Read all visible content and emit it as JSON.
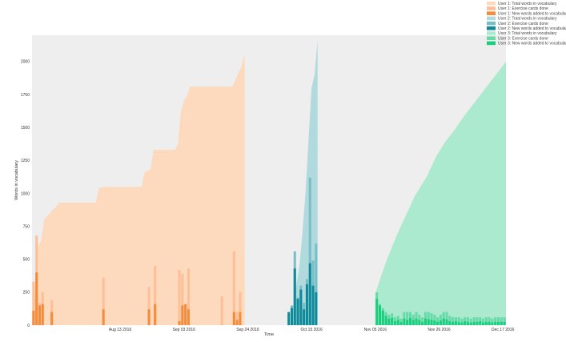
{
  "chart_data": {
    "type": "area",
    "xlabel": "Time",
    "ylabel": "Words in vocabulary",
    "grid": false,
    "legend_placement": "top-right",
    "background": "#eeeeee",
    "x_ticks": [
      {
        "date": "2016-08-13",
        "label": "Aug 13 2016"
      },
      {
        "date": "2016-09-03",
        "label": "Sep 03 2016"
      },
      {
        "date": "2016-09-24",
        "label": "Sep 24 2016"
      },
      {
        "date": "2016-10-15",
        "label": "Oct 15 2016"
      },
      {
        "date": "2016-11-05",
        "label": "Nov 05 2016"
      },
      {
        "date": "2016-11-26",
        "label": "Nov 26 2016"
      },
      {
        "date": "2016-12-17",
        "label": "Dec 17 2016"
      }
    ],
    "xlim": [
      "2016-07-15",
      "2016-12-18"
    ],
    "ylim": [
      0,
      2200
    ],
    "y_ticks": [
      0,
      250,
      500,
      750,
      1000,
      1250,
      1500,
      1750,
      2000
    ],
    "colors": {
      "user1_total": "#fdd9bd",
      "user1_cards": "#fcbf97",
      "user1_new": "#f58c3b",
      "user2_total": "#b0dadd",
      "user2_cards": "#78bec7",
      "user2_new": "#0e8a9a",
      "user3_total": "#acead0",
      "user3_cards": "#68d9a8",
      "user3_new": "#19cf7d"
    },
    "legend": [
      {
        "label": "User 1: Total words in vocabulary",
        "color_key": "user1_total"
      },
      {
        "label": "User 1: Exercise cards done",
        "color_key": "user1_cards"
      },
      {
        "label": "User 1: New words added to vocabulary",
        "color_key": "user1_new"
      },
      {
        "label": "User 2: Total words in vocabulary",
        "color_key": "user2_total"
      },
      {
        "label": "User 2: Exercise cards done",
        "color_key": "user2_cards"
      },
      {
        "label": "User 2: New words added to vocabulary",
        "color_key": "user2_new"
      },
      {
        "label": "User 3: Total words in vocabulary",
        "color_key": "user3_total"
      },
      {
        "label": "User 3: Exercise cards done",
        "color_key": "user3_cards"
      },
      {
        "label": "User 3: New words added to vocabulary",
        "color_key": "user3_new"
      }
    ],
    "series": [
      {
        "name": "User 1: Total words in vocabulary",
        "kind": "area",
        "color_key": "user1_total",
        "points": [
          [
            "2016-07-15",
            0
          ],
          [
            "2016-07-16",
            270
          ],
          [
            "2016-07-17",
            600
          ],
          [
            "2016-07-18",
            640
          ],
          [
            "2016-07-19",
            800
          ],
          [
            "2016-07-20",
            830
          ],
          [
            "2016-07-21",
            850
          ],
          [
            "2016-07-22",
            880
          ],
          [
            "2016-07-23",
            900
          ],
          [
            "2016-07-24",
            930
          ],
          [
            "2016-08-05",
            930
          ],
          [
            "2016-08-06",
            1040
          ],
          [
            "2016-08-08",
            1050
          ],
          [
            "2016-08-20",
            1050
          ],
          [
            "2016-08-21",
            1160
          ],
          [
            "2016-08-23",
            1180
          ],
          [
            "2016-08-24",
            1330
          ],
          [
            "2016-08-31",
            1330
          ],
          [
            "2016-09-01",
            1370
          ],
          [
            "2016-09-02",
            1620
          ],
          [
            "2016-09-03",
            1700
          ],
          [
            "2016-09-04",
            1740
          ],
          [
            "2016-09-05",
            1810
          ],
          [
            "2016-09-19",
            1810
          ],
          [
            "2016-09-21",
            1920
          ],
          [
            "2016-09-22",
            1960
          ],
          [
            "2016-09-23",
            2060
          ],
          [
            "2016-09-23",
            0
          ]
        ]
      },
      {
        "name": "User 2: Total words in vocabulary",
        "kind": "area",
        "color_key": "user2_total",
        "points": [
          [
            "2016-10-08",
            0
          ],
          [
            "2016-10-09",
            150
          ],
          [
            "2016-10-10",
            300
          ],
          [
            "2016-10-11",
            450
          ],
          [
            "2016-10-12",
            700
          ],
          [
            "2016-10-13",
            1000
          ],
          [
            "2016-10-14",
            1400
          ],
          [
            "2016-10-15",
            1800
          ],
          [
            "2016-10-16",
            1900
          ],
          [
            "2016-10-17",
            2160
          ],
          [
            "2016-10-17",
            0
          ]
        ]
      },
      {
        "name": "User 3: Total words in vocabulary",
        "kind": "area",
        "color_key": "user3_total",
        "points": [
          [
            "2016-11-05",
            0
          ],
          [
            "2016-11-05",
            240
          ],
          [
            "2016-11-07",
            380
          ],
          [
            "2016-11-09",
            510
          ],
          [
            "2016-11-12",
            680
          ],
          [
            "2016-11-15",
            830
          ],
          [
            "2016-11-18",
            980
          ],
          [
            "2016-11-22",
            1130
          ],
          [
            "2016-11-25",
            1280
          ],
          [
            "2016-11-28",
            1390
          ],
          [
            "2016-12-01",
            1480
          ],
          [
            "2016-12-04",
            1580
          ],
          [
            "2016-12-08",
            1700
          ],
          [
            "2016-12-11",
            1790
          ],
          [
            "2016-12-14",
            1880
          ],
          [
            "2016-12-18",
            2000
          ],
          [
            "2016-12-18",
            0
          ]
        ]
      },
      {
        "name": "User 1: Exercise cards done",
        "kind": "bar",
        "color_key": "user1_cards",
        "points": [
          [
            "2016-07-15",
            330
          ],
          [
            "2016-07-16",
            680
          ],
          [
            "2016-07-17",
            170
          ],
          [
            "2016-07-18",
            250
          ],
          [
            "2016-07-21",
            190
          ],
          [
            "2016-08-07",
            360
          ],
          [
            "2016-08-22",
            290
          ],
          [
            "2016-08-24",
            450
          ],
          [
            "2016-09-01",
            420
          ],
          [
            "2016-09-02",
            390
          ],
          [
            "2016-09-04",
            430
          ],
          [
            "2016-09-15",
            220
          ],
          [
            "2016-09-19",
            560
          ],
          [
            "2016-09-20",
            100
          ],
          [
            "2016-09-21",
            250
          ]
        ]
      },
      {
        "name": "User 1: New words added to vocabulary",
        "kind": "bar",
        "color_key": "user1_new",
        "points": [
          [
            "2016-07-15",
            110
          ],
          [
            "2016-07-16",
            400
          ],
          [
            "2016-07-17",
            150
          ],
          [
            "2016-07-18",
            160
          ],
          [
            "2016-07-21",
            100
          ],
          [
            "2016-08-07",
            120
          ],
          [
            "2016-08-22",
            120
          ],
          [
            "2016-08-24",
            160
          ],
          [
            "2016-09-01",
            30
          ],
          [
            "2016-09-02",
            150
          ],
          [
            "2016-09-03",
            160
          ],
          [
            "2016-09-04",
            120
          ],
          [
            "2016-09-19",
            100
          ],
          [
            "2016-09-20",
            40
          ],
          [
            "2016-09-21",
            100
          ]
        ]
      },
      {
        "name": "User 2: Exercise cards done",
        "kind": "bar",
        "color_key": "user2_cards",
        "points": [
          [
            "2016-10-08",
            150
          ],
          [
            "2016-10-09",
            560
          ],
          [
            "2016-10-10",
            210
          ],
          [
            "2016-10-11",
            300
          ],
          [
            "2016-10-12",
            170
          ],
          [
            "2016-10-13",
            350
          ],
          [
            "2016-10-14",
            1120
          ],
          [
            "2016-10-15",
            490
          ],
          [
            "2016-10-16",
            620
          ]
        ]
      },
      {
        "name": "User 2: New words added to vocabulary",
        "kind": "bar",
        "color_key": "user2_new",
        "points": [
          [
            "2016-10-07",
            100
          ],
          [
            "2016-10-08",
            130
          ],
          [
            "2016-10-09",
            430
          ],
          [
            "2016-10-10",
            200
          ],
          [
            "2016-10-11",
            270
          ],
          [
            "2016-10-12",
            120
          ],
          [
            "2016-10-13",
            310
          ],
          [
            "2016-10-14",
            470
          ],
          [
            "2016-10-15",
            300
          ],
          [
            "2016-10-16",
            250
          ]
        ]
      },
      {
        "name": "User 3: Exercise cards done",
        "kind": "bar",
        "color_key": "user3_cards",
        "points": [
          [
            "2016-11-05",
            250
          ],
          [
            "2016-11-06",
            160
          ],
          [
            "2016-11-07",
            130
          ],
          [
            "2016-11-08",
            100
          ],
          [
            "2016-11-09",
            80
          ],
          [
            "2016-11-10",
            90
          ],
          [
            "2016-11-11",
            60
          ],
          [
            "2016-11-12",
            70
          ],
          [
            "2016-11-13",
            50
          ],
          [
            "2016-11-14",
            100
          ],
          [
            "2016-11-15",
            100
          ],
          [
            "2016-11-16",
            100
          ],
          [
            "2016-11-17",
            80
          ],
          [
            "2016-11-18",
            100
          ],
          [
            "2016-11-19",
            80
          ],
          [
            "2016-11-20",
            60
          ],
          [
            "2016-11-21",
            100
          ],
          [
            "2016-11-22",
            100
          ],
          [
            "2016-11-23",
            90
          ],
          [
            "2016-11-24",
            80
          ],
          [
            "2016-11-25",
            60
          ],
          [
            "2016-11-26",
            80
          ],
          [
            "2016-11-27",
            100
          ],
          [
            "2016-11-28",
            100
          ],
          [
            "2016-11-29",
            70
          ],
          [
            "2016-11-30",
            60
          ],
          [
            "2016-12-01",
            60
          ],
          [
            "2016-12-02",
            60
          ],
          [
            "2016-12-03",
            50
          ],
          [
            "2016-12-04",
            60
          ],
          [
            "2016-12-05",
            60
          ],
          [
            "2016-12-06",
            50
          ],
          [
            "2016-12-07",
            60
          ],
          [
            "2016-12-08",
            60
          ],
          [
            "2016-12-09",
            60
          ],
          [
            "2016-12-10",
            50
          ],
          [
            "2016-12-11",
            60
          ],
          [
            "2016-12-12",
            60
          ],
          [
            "2016-12-13",
            50
          ],
          [
            "2016-12-14",
            60
          ],
          [
            "2016-12-15",
            60
          ],
          [
            "2016-12-16",
            60
          ],
          [
            "2016-12-17",
            60
          ]
        ]
      },
      {
        "name": "User 3: New words added to vocabulary",
        "kind": "bar",
        "color_key": "user3_new",
        "points": [
          [
            "2016-11-05",
            200
          ],
          [
            "2016-11-06",
            150
          ],
          [
            "2016-11-07",
            110
          ],
          [
            "2016-11-08",
            70
          ],
          [
            "2016-11-09",
            50
          ],
          [
            "2016-11-10",
            55
          ],
          [
            "2016-11-11",
            30
          ],
          [
            "2016-11-12",
            40
          ],
          [
            "2016-11-13",
            25
          ],
          [
            "2016-11-14",
            50
          ],
          [
            "2016-11-15",
            40
          ],
          [
            "2016-11-16",
            55
          ],
          [
            "2016-11-17",
            40
          ],
          [
            "2016-11-18",
            50
          ],
          [
            "2016-11-19",
            40
          ],
          [
            "2016-11-20",
            25
          ],
          [
            "2016-11-21",
            50
          ],
          [
            "2016-11-22",
            45
          ],
          [
            "2016-11-23",
            40
          ],
          [
            "2016-11-24",
            35
          ],
          [
            "2016-11-25",
            25
          ],
          [
            "2016-11-26",
            35
          ],
          [
            "2016-11-27",
            50
          ],
          [
            "2016-11-28",
            45
          ],
          [
            "2016-11-29",
            30
          ],
          [
            "2016-11-30",
            25
          ],
          [
            "2016-12-01",
            30
          ],
          [
            "2016-12-02",
            25
          ],
          [
            "2016-12-03",
            20
          ],
          [
            "2016-12-04",
            30
          ],
          [
            "2016-12-05",
            25
          ],
          [
            "2016-12-06",
            20
          ],
          [
            "2016-12-07",
            25
          ],
          [
            "2016-12-08",
            25
          ],
          [
            "2016-12-09",
            30
          ],
          [
            "2016-12-10",
            20
          ],
          [
            "2016-12-11",
            25
          ],
          [
            "2016-12-12",
            25
          ],
          [
            "2016-12-13",
            20
          ],
          [
            "2016-12-14",
            25
          ],
          [
            "2016-12-15",
            25
          ],
          [
            "2016-12-16",
            25
          ],
          [
            "2016-12-17",
            25
          ]
        ]
      }
    ]
  }
}
